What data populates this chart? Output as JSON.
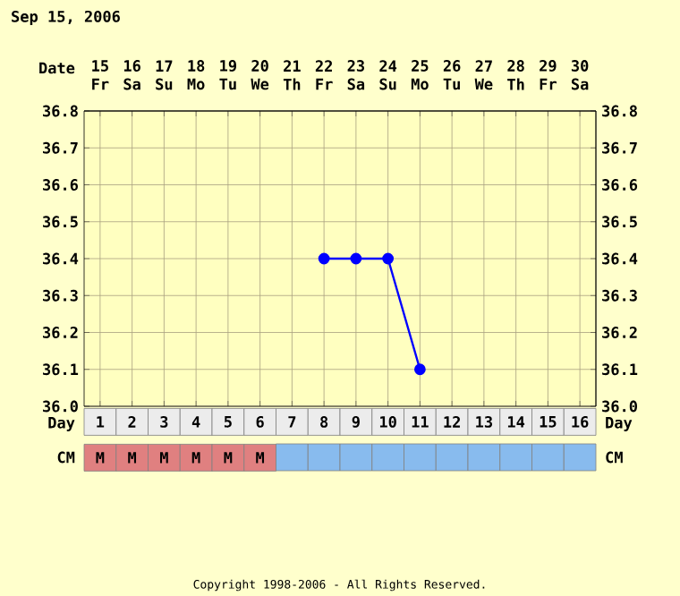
{
  "chart_data": {
    "type": "line",
    "title": "Sep 15, 2006",
    "x2label": "Date",
    "xlabel": "Day",
    "categories": [
      "1",
      "2",
      "3",
      "4",
      "5",
      "6",
      "7",
      "8",
      "9",
      "10",
      "11",
      "12",
      "13",
      "14",
      "15",
      "16"
    ],
    "x2lim": [
      14.5,
      30.5
    ],
    "x2ticks": [
      15,
      16,
      17,
      18,
      19,
      20,
      21,
      22,
      23,
      24,
      25,
      26,
      27,
      28,
      29,
      30
    ],
    "ylim": [
      36.0,
      36.8
    ],
    "yticks": [
      {
        "value": 36.0,
        "label": "36.0"
      },
      {
        "value": 36.1,
        "label": "36.1"
      },
      {
        "value": 36.2,
        "label": "36.2"
      },
      {
        "value": 36.3,
        "label": "36.3"
      },
      {
        "value": 36.4,
        "label": "36.4"
      },
      {
        "value": 36.5,
        "label": "36.5"
      },
      {
        "value": 36.6,
        "label": "36.6"
      },
      {
        "value": 36.7,
        "label": "36.7"
      },
      {
        "value": 36.8,
        "label": "36.8"
      }
    ],
    "y2lim": [
      36.0,
      36.8
    ],
    "y2ticks": [
      {
        "value": 36.0,
        "label": "36.0"
      },
      {
        "value": 36.1,
        "label": "36.1"
      },
      {
        "value": 36.2,
        "label": "36.2"
      },
      {
        "value": 36.3,
        "label": "36.3"
      },
      {
        "value": 36.4,
        "label": "36.4"
      },
      {
        "value": 36.5,
        "label": "36.5"
      },
      {
        "value": 36.6,
        "label": "36.6"
      },
      {
        "value": 36.7,
        "label": "36.7"
      },
      {
        "value": 36.8,
        "label": "36.8"
      }
    ],
    "series": [
      {
        "color": "#0000ff",
        "values": [
          null,
          null,
          null,
          null,
          null,
          null,
          null,
          36.4,
          36.4,
          36.4,
          36.1,
          null,
          null,
          null,
          null,
          null
        ]
      }
    ],
    "marker": "circle",
    "grid": true,
    "annotations": [
      "Fr",
      "Sa",
      "Su",
      "Mo",
      "Tu",
      "We",
      "Th",
      "Fr",
      "Sa",
      "Su",
      "Mo",
      "Tu",
      "We",
      "Th",
      "Fr",
      "Sa",
      "CM",
      "M",
      "M",
      "M",
      "M",
      "M",
      "M",
      "Copyright 1998-2006 - All Rights Reserved."
    ]
  }
}
